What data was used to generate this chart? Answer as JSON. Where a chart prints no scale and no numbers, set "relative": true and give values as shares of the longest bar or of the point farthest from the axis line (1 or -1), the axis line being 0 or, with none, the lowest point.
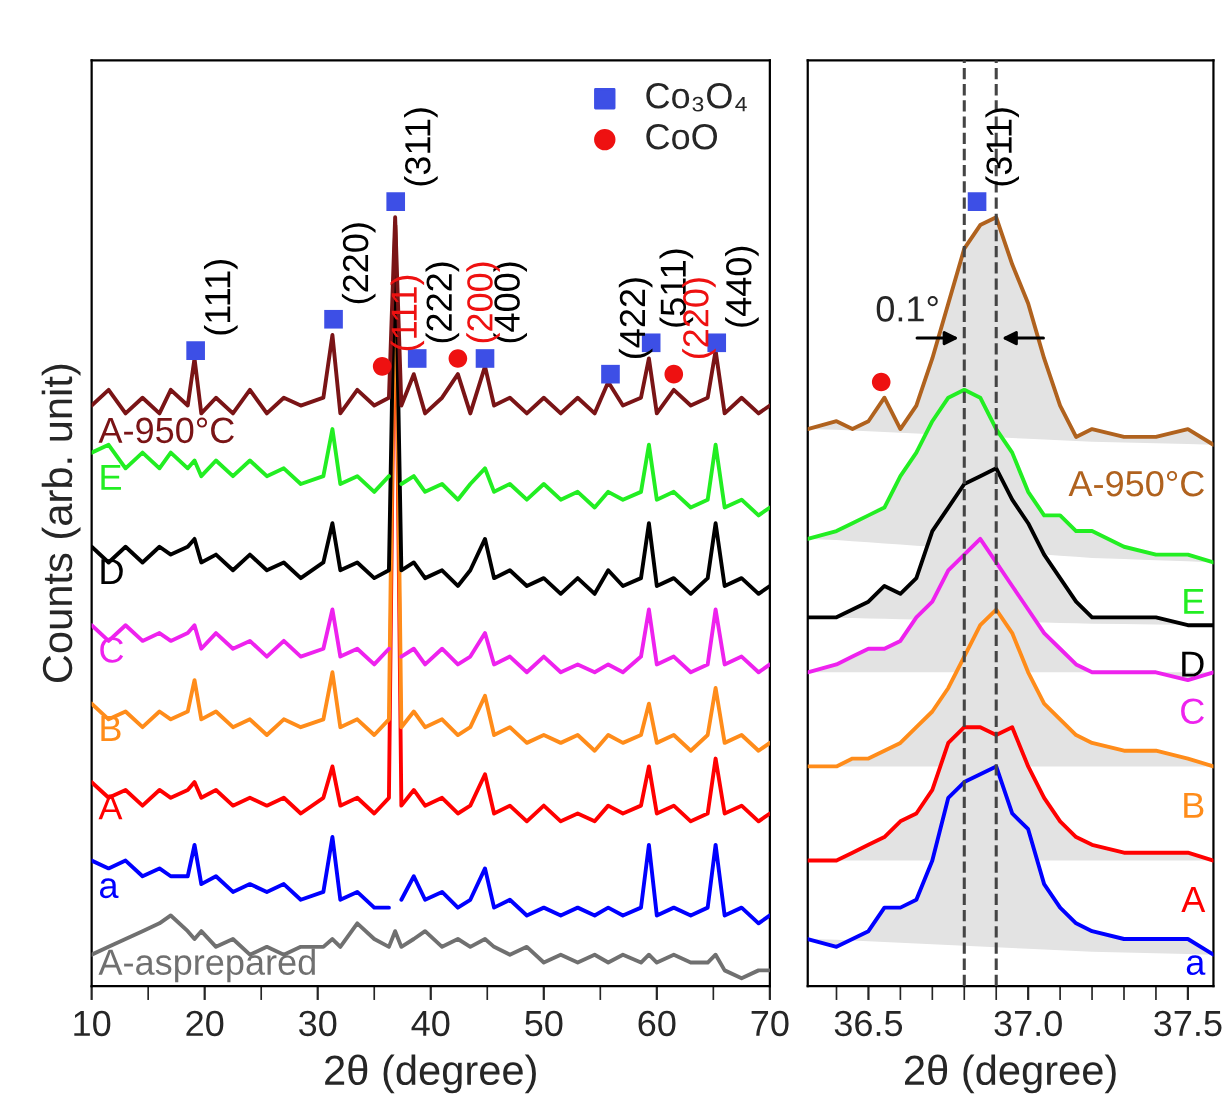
{
  "chart_data": [
    {
      "type": "line",
      "relative": true,
      "xlabel": "2θ (degree)",
      "ylabel": "Counts (arb. unit)",
      "tick_labels": "x",
      "legend": "top right",
      "xlim": [
        10,
        70
      ],
      "xticks": [
        10,
        {
          "value": 15,
          "label": null
        },
        20,
        {
          "value": 25,
          "label": null
        },
        30,
        {
          "value": 35,
          "label": null
        },
        40,
        {
          "value": 45,
          "label": null
        },
        50,
        {
          "value": 55,
          "label": null
        },
        60,
        {
          "value": 65,
          "label": null
        },
        70
      ],
      "x": [
        10,
        11.5,
        13,
        14.5,
        16,
        17,
        18.5,
        19.1,
        19.7,
        21,
        22.5,
        24,
        25.5,
        27,
        28.5,
        30.5,
        31.3,
        32,
        33.5,
        35,
        36.3,
        36.85,
        37.4,
        38.5,
        39.5,
        41,
        42.4,
        43.5,
        44.8,
        45.6,
        47,
        48.5,
        50,
        51.5,
        53,
        54.5,
        55.7,
        57,
        58.6,
        59.3,
        60,
        61.5,
        63,
        64.5,
        65.2,
        66,
        67.5,
        69,
        70
      ],
      "series": [
        {
          "name": "A-950°C",
          "color": "#7a1416",
          "values": [
            0.74,
            0.76,
            0.73,
            0.75,
            0.73,
            0.76,
            0.74,
            0.8,
            0.73,
            0.75,
            0.73,
            0.76,
            0.73,
            0.75,
            0.74,
            0.75,
            0.83,
            0.73,
            0.76,
            0.74,
            0.75,
            0.98,
            0.74,
            0.78,
            0.73,
            0.75,
            0.78,
            0.73,
            0.79,
            0.74,
            0.75,
            0.73,
            0.75,
            0.73,
            0.75,
            0.73,
            0.77,
            0.74,
            0.75,
            0.8,
            0.73,
            0.76,
            0.74,
            0.75,
            0.81,
            0.73,
            0.75,
            0.73,
            0.74
          ]
        },
        {
          "name": "E",
          "color": "#22ee22",
          "values": [
            0.68,
            0.69,
            0.66,
            0.68,
            0.66,
            0.68,
            0.66,
            0.67,
            0.65,
            0.67,
            0.65,
            0.67,
            0.65,
            0.66,
            0.64,
            0.65,
            0.71,
            0.64,
            0.65,
            0.63,
            0.65,
            null,
            0.64,
            0.65,
            0.63,
            0.64,
            0.62,
            0.64,
            0.66,
            0.63,
            0.64,
            0.62,
            0.64,
            0.62,
            0.63,
            0.61,
            0.63,
            0.62,
            0.63,
            0.69,
            0.62,
            0.63,
            0.61,
            0.62,
            0.69,
            0.61,
            0.62,
            0.6,
            0.61
          ]
        },
        {
          "name": "D",
          "color": "#000000",
          "values": [
            0.56,
            0.54,
            0.56,
            0.54,
            0.56,
            0.55,
            0.56,
            0.57,
            0.54,
            0.55,
            0.53,
            0.55,
            0.53,
            0.54,
            0.52,
            0.54,
            0.59,
            0.53,
            0.54,
            0.52,
            0.53,
            0.97,
            0.53,
            0.54,
            0.52,
            0.53,
            0.51,
            0.53,
            0.57,
            0.52,
            0.53,
            0.51,
            0.52,
            0.5,
            0.52,
            0.5,
            0.53,
            0.51,
            0.52,
            0.59,
            0.51,
            0.52,
            0.5,
            0.52,
            0.59,
            0.51,
            0.52,
            0.5,
            0.51
          ]
        },
        {
          "name": "C",
          "color": "#ee22ee",
          "values": [
            0.46,
            0.44,
            0.46,
            0.44,
            0.45,
            0.44,
            0.45,
            0.46,
            0.43,
            0.45,
            0.43,
            0.44,
            0.42,
            0.44,
            0.42,
            0.43,
            0.48,
            0.42,
            0.43,
            0.41,
            0.43,
            null,
            0.42,
            0.43,
            0.41,
            0.43,
            0.41,
            0.42,
            0.45,
            0.41,
            0.42,
            0.4,
            0.42,
            0.4,
            0.41,
            0.4,
            0.41,
            0.4,
            0.42,
            0.48,
            0.41,
            0.42,
            0.4,
            0.41,
            0.48,
            0.41,
            0.42,
            0.4,
            0.41
          ]
        },
        {
          "name": "B",
          "color": "#ff8c1a",
          "values": [
            0.36,
            0.34,
            0.35,
            0.33,
            0.35,
            0.34,
            0.35,
            0.39,
            0.34,
            0.35,
            0.33,
            0.34,
            0.32,
            0.34,
            0.33,
            0.34,
            0.4,
            0.33,
            0.34,
            0.32,
            0.34,
            0.97,
            0.33,
            0.35,
            0.33,
            0.34,
            0.32,
            0.33,
            0.37,
            0.32,
            0.33,
            0.31,
            0.32,
            0.31,
            0.32,
            0.3,
            0.32,
            0.31,
            0.32,
            0.36,
            0.31,
            0.32,
            0.3,
            0.32,
            0.38,
            0.31,
            0.32,
            0.3,
            0.31
          ]
        },
        {
          "name": "A",
          "color": "#ff0000",
          "values": [
            0.26,
            0.24,
            0.25,
            0.23,
            0.25,
            0.24,
            0.25,
            0.26,
            0.24,
            0.25,
            0.23,
            0.24,
            0.23,
            0.24,
            0.22,
            0.24,
            0.28,
            0.23,
            0.24,
            0.22,
            0.24,
            0.97,
            0.23,
            0.25,
            0.23,
            0.24,
            0.22,
            0.23,
            0.27,
            0.22,
            0.23,
            0.21,
            0.23,
            0.21,
            0.22,
            0.21,
            0.23,
            0.22,
            0.23,
            0.28,
            0.22,
            0.23,
            0.21,
            0.22,
            0.29,
            0.22,
            0.23,
            0.21,
            0.22
          ]
        },
        {
          "name": "a",
          "color": "#0000ff",
          "values": [
            0.16,
            0.15,
            0.16,
            0.14,
            0.15,
            0.14,
            0.14,
            0.18,
            0.13,
            0.14,
            0.12,
            0.13,
            0.12,
            0.13,
            0.11,
            0.12,
            0.19,
            0.11,
            0.12,
            0.1,
            0.1,
            null,
            0.11,
            0.14,
            0.11,
            0.12,
            0.1,
            0.11,
            0.15,
            0.1,
            0.11,
            0.09,
            0.1,
            0.09,
            0.1,
            0.09,
            0.1,
            0.09,
            0.1,
            0.18,
            0.09,
            0.1,
            0.09,
            0.1,
            0.18,
            0.09,
            0.1,
            0.08,
            0.09
          ]
        },
        {
          "name": "A-asprepared",
          "color": "#707070",
          "values": [
            0.04,
            0.05,
            0.06,
            0.07,
            0.08,
            0.09,
            0.07,
            0.06,
            0.07,
            0.05,
            0.06,
            0.04,
            0.05,
            0.04,
            0.05,
            0.05,
            0.06,
            0.05,
            0.08,
            0.06,
            0.05,
            0.07,
            0.05,
            0.06,
            0.07,
            0.05,
            0.06,
            0.05,
            0.06,
            0.05,
            0.04,
            0.05,
            0.03,
            0.04,
            0.03,
            0.04,
            0.03,
            0.04,
            0.03,
            0.04,
            0.03,
            0.04,
            0.03,
            0.03,
            0.04,
            0.02,
            0.01,
            0.02,
            0.02
          ]
        },
        {
          "name": "Co₃O₄",
          "type": "scatter",
          "marker": "square",
          "color": "#3d4fe6",
          "x": [
            19.2,
            31.4,
            36.9,
            38.8,
            44.8,
            55.9,
            59.5,
            65.3
          ],
          "values": [
            0.81,
            0.85,
            1.0,
            0.8,
            0.8,
            0.78,
            0.82,
            0.82
          ]
        },
        {
          "name": "CoO",
          "type": "scatter",
          "marker": "circle",
          "color": "#ee1111",
          "x": [
            35.7,
            42.4,
            61.5
          ],
          "values": [
            0.79,
            0.8,
            0.78
          ]
        }
      ],
      "annotations": [
        {
          "text": "(111)",
          "x": 19.2,
          "y": 0.81
        },
        {
          "text": "(220)",
          "x": 31.4,
          "y": 0.85
        },
        {
          "text": "(311)",
          "x": 36.9,
          "y": 1.0
        },
        {
          "text": "(222)",
          "x": 38.8,
          "y": 0.8
        },
        {
          "text": "(400)",
          "x": 44.8,
          "y": 0.8
        },
        {
          "text": "(422)",
          "x": 55.9,
          "y": 0.78
        },
        {
          "text": "(511)",
          "x": 59.5,
          "y": 0.82
        },
        {
          "text": "(440)",
          "x": 65.3,
          "y": 0.82
        },
        {
          "text": "(111)",
          "x": 35.7,
          "y": 0.79
        },
        {
          "text": "(200)",
          "x": 42.4,
          "y": 0.8
        },
        {
          "text": "(220)",
          "x": 61.5,
          "y": 0.78
        }
      ]
    },
    {
      "type": "line",
      "relative": true,
      "xlabel": "2θ (degree)",
      "tick_labels": "x",
      "xlim": [
        36.31,
        37.58
      ],
      "xticks": [
        {
          "value": 36.4,
          "label": null
        },
        {
          "value": 36.5,
          "label": "36.5"
        },
        {
          "value": 36.6,
          "label": null
        },
        {
          "value": 36.7,
          "label": null
        },
        {
          "value": 36.8,
          "label": null
        },
        {
          "value": 36.9,
          "label": null
        },
        {
          "value": 37.0,
          "label": "37.0"
        },
        {
          "value": 37.1,
          "label": null
        },
        {
          "value": 37.2,
          "label": null
        },
        {
          "value": 37.3,
          "label": null
        },
        {
          "value": 37.4,
          "label": null
        },
        {
          "value": 37.5,
          "label": "37.5"
        }
      ],
      "x": [
        36.31,
        36.4,
        36.45,
        36.5,
        36.55,
        36.6,
        36.65,
        36.7,
        36.75,
        36.8,
        36.85,
        36.9,
        36.95,
        37.0,
        37.05,
        37.1,
        37.15,
        37.2,
        37.3,
        37.4,
        37.5,
        37.58
      ],
      "ref_lines": [
        {
          "axis": "x",
          "value": 36.8,
          "color": "#444444",
          "line_style": "dashed"
        },
        {
          "axis": "x",
          "value": 36.9,
          "color": "#444444",
          "line_style": "dashed"
        }
      ],
      "annotations": [
        "0.1°",
        {
          "text": "(311)",
          "x": 36.84,
          "y": 1.0
        }
      ],
      "series": [
        {
          "name": "A-950°C",
          "color": "#b0621e",
          "values": [
            0.71,
            0.72,
            0.71,
            0.72,
            0.75,
            0.71,
            0.74,
            0.8,
            0.87,
            0.94,
            0.97,
            0.98,
            0.92,
            0.87,
            0.8,
            0.74,
            0.7,
            0.71,
            0.7,
            0.7,
            0.71,
            0.69
          ]
        },
        {
          "name": "E",
          "color": "#22ee22",
          "values": [
            0.57,
            0.58,
            0.59,
            0.6,
            0.61,
            0.65,
            0.68,
            0.72,
            0.75,
            0.76,
            0.75,
            0.71,
            0.68,
            0.63,
            0.6,
            0.6,
            0.58,
            0.58,
            0.56,
            0.55,
            0.55,
            0.54
          ]
        },
        {
          "name": "D",
          "color": "#000000",
          "values": [
            0.47,
            0.47,
            0.48,
            0.49,
            0.51,
            0.5,
            0.52,
            0.58,
            0.61,
            0.64,
            0.65,
            0.66,
            0.62,
            0.59,
            0.55,
            0.52,
            0.49,
            0.47,
            0.47,
            0.47,
            0.46,
            0.46
          ]
        },
        {
          "name": "C",
          "color": "#ee22ee",
          "values": [
            0.4,
            0.41,
            0.42,
            0.43,
            0.43,
            0.44,
            0.47,
            0.49,
            0.53,
            0.55,
            0.57,
            0.54,
            0.51,
            0.48,
            0.45,
            0.43,
            0.41,
            0.4,
            0.4,
            0.4,
            0.39,
            0.4
          ]
        },
        {
          "name": "B",
          "color": "#ff8c1a",
          "values": [
            0.28,
            0.28,
            0.29,
            0.29,
            0.3,
            0.31,
            0.33,
            0.35,
            0.38,
            0.42,
            0.46,
            0.48,
            0.45,
            0.4,
            0.36,
            0.34,
            0.32,
            0.31,
            0.3,
            0.3,
            0.29,
            0.28
          ]
        },
        {
          "name": "A",
          "color": "#ff0000",
          "values": [
            0.16,
            0.16,
            0.17,
            0.18,
            0.19,
            0.21,
            0.22,
            0.25,
            0.31,
            0.33,
            0.33,
            0.32,
            0.33,
            0.28,
            0.24,
            0.21,
            0.19,
            0.18,
            0.17,
            0.17,
            0.17,
            0.16
          ]
        },
        {
          "name": "a",
          "color": "#0000ff",
          "values": [
            0.06,
            0.05,
            0.06,
            0.07,
            0.1,
            0.1,
            0.11,
            0.16,
            0.24,
            0.26,
            0.27,
            0.28,
            0.22,
            0.2,
            0.13,
            0.1,
            0.08,
            0.07,
            0.06,
            0.06,
            0.06,
            0.04
          ]
        },
        {
          "type": "scatter",
          "marker": "square",
          "color": "#3d4fe6",
          "x": [
            36.84
          ],
          "values": [
            1.0
          ]
        },
        {
          "type": "scatter",
          "marker": "circle",
          "color": "#ee1111",
          "x": [
            36.54
          ],
          "values": [
            0.77
          ]
        }
      ]
    }
  ]
}
